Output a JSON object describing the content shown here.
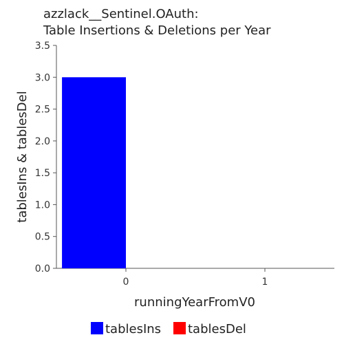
{
  "chart_data": {
    "type": "bar",
    "title_lines": [
      "azzlack__Sentinel.OAuth:",
      "Table Insertions & Deletions per Year"
    ],
    "xlabel": "runningYearFromV0",
    "ylabel": "tablesIns & tablesDel",
    "categories": [
      "0",
      "1"
    ],
    "ylim": [
      0,
      3.5
    ],
    "yticks": [
      "0.0",
      "0.5",
      "1.0",
      "1.5",
      "2.0",
      "2.5",
      "3.0",
      "3.5"
    ],
    "series": [
      {
        "name": "tablesIns",
        "color": "#0000ff",
        "values": [
          3,
          0
        ]
      },
      {
        "name": "tablesDel",
        "color": "#ff0000",
        "values": [
          0,
          0
        ]
      }
    ],
    "legend_position": "bottom-center",
    "grid": false
  }
}
